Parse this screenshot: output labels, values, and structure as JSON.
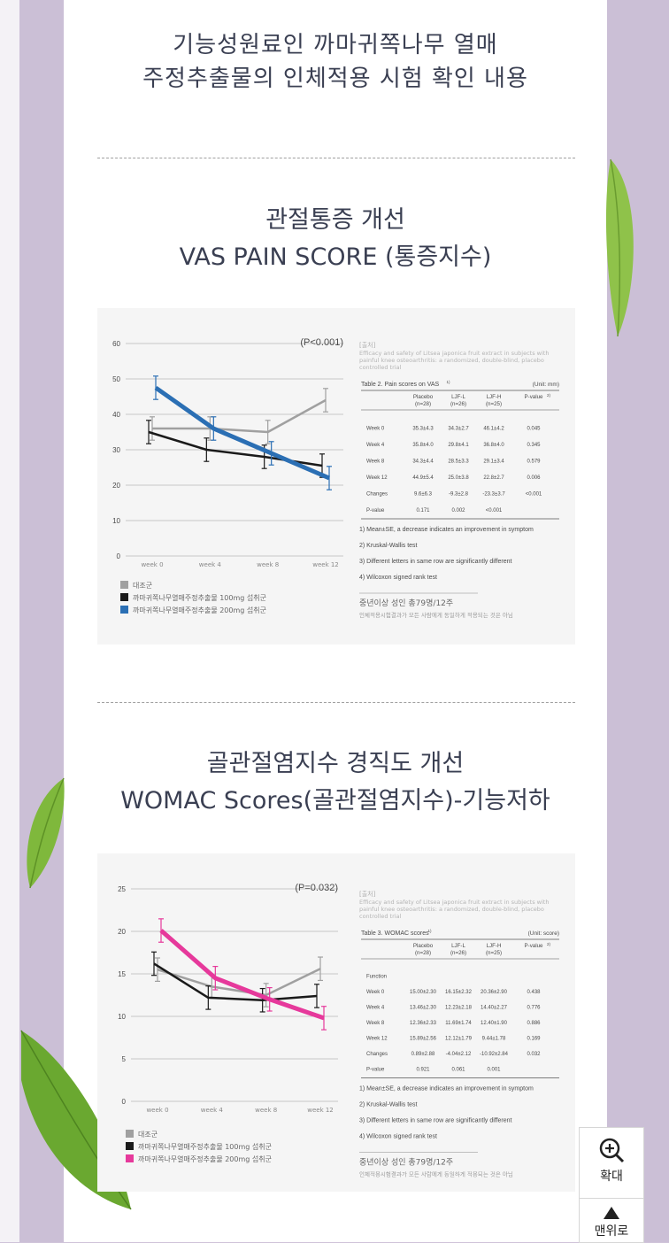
{
  "title": {
    "line1": "기능성원료인 까마귀쪽나무 열매",
    "line2": "주정추출물의 인체적용 시험 확인 내용"
  },
  "section1": {
    "title_line1": "관절통증 개선",
    "title_line2": "VAS PAIN SCORE (통증지수)"
  },
  "section2": {
    "title_line1": "골관절염지수 경직도 개선",
    "title_line2": "WOMAC Scores(골관절염지수)-기능저하"
  },
  "chart_data": [
    {
      "type": "line",
      "annotation": "(P<0.001)",
      "x": [
        "week 0",
        "week 4",
        "week 8",
        "week 12"
      ],
      "ylim": [
        0,
        60
      ],
      "yticks": [
        "0",
        "10",
        "20",
        "30",
        "40",
        "50",
        "60"
      ],
      "series": [
        {
          "name": "대조군",
          "color": "#a0a0a0",
          "values": [
            36,
            36,
            35,
            44
          ]
        },
        {
          "name": "까마귀쪽나무열매주정추출물 100mg 섭취군",
          "color": "#1a1a1a",
          "values": [
            35,
            30,
            28,
            25.5
          ]
        },
        {
          "name": "까마귀쪽나무열매주정추출물 200mg 섭취군",
          "color": "#2b6fb4",
          "values": [
            47.5,
            36,
            29,
            22
          ]
        }
      ]
    },
    {
      "type": "line",
      "annotation": "(P=0.032)",
      "x": [
        "week 0",
        "week 4",
        "week 8",
        "week 12"
      ],
      "ylim": [
        0,
        25
      ],
      "yticks": [
        "0",
        "5",
        "10",
        "15",
        "20",
        "25"
      ],
      "series": [
        {
          "name": "대조군",
          "color": "#a0a0a0",
          "values": [
            15.5,
            13.5,
            12.5,
            15.6
          ]
        },
        {
          "name": "까마귀쪽나무열매주정추출물 100mg 섭취군",
          "color": "#1a1a1a",
          "values": [
            16.2,
            12.2,
            11.9,
            12.4
          ]
        },
        {
          "name": "까마귀쪽나무열매주정추출물 200mg 섭취군",
          "color": "#e6399b",
          "values": [
            20.1,
            14.5,
            12.0,
            9.8
          ]
        }
      ]
    }
  ],
  "table1": {
    "source": "[출처]",
    "source_text": [
      "Efficacy and safety of Litsea japonica fruit extract in subjects with",
      "painful knee osteoarthritis: a randomized, double-blind, placebo",
      "controlled trial"
    ],
    "caption": "Table 2. Pain scores on VAS",
    "caption_sup": "1)",
    "unit": "(Unit: mm)",
    "headers": [
      "",
      "Placebo\n(n=28)",
      "LJF-L\n(n=26)",
      "LJF-H\n(n=25)",
      "P-value"
    ],
    "header_sup": "2)",
    "rows": [
      [
        "Week 0",
        "35.3±4.3",
        "34.3±2.7",
        "46.1±4.2",
        "0.045"
      ],
      [
        "Week 4",
        "35.8±4.0",
        "29.8±4.1",
        "36.8±4.0",
        "0.345"
      ],
      [
        "Week 8",
        "34.3±4.4",
        "28.5±3.3",
        "29.1±3.4",
        "0.579"
      ],
      [
        "Week 12",
        "44.9±5.4",
        "25.0±3.8",
        "22.8±2.7",
        "0.006"
      ],
      [
        "Changes",
        "9.6±6.3",
        "-9.3±2.8",
        "-23.3±3.7",
        "<0.001"
      ],
      [
        "P-value",
        "0.171",
        "0.002",
        "<0.001",
        ""
      ]
    ],
    "notes": [
      "1) Mean±SE, a decrease indicates an improvement in symptom",
      "2) Kruskal-Wallis test",
      "3) Different letters in same row are significantly different",
      "4) Wilcoxon signed rank test"
    ],
    "subjects": "중년이상 성인 총79명/12주",
    "disclaimer": "인체적용시험결과가 모든 사람에게 동일하게 적용되는 것은 아님"
  },
  "table2": {
    "source": "[출처]",
    "source_text": [
      "Efficacy and safety of Litsea japonica fruit extract in subjects with",
      "painful knee osteoarthritis: a randomized, double-blind, placebo",
      "controlled trial"
    ],
    "caption": "Table 3. WOMAC scores",
    "caption_sup": "1)",
    "unit": "(Unit: score)",
    "headers": [
      "",
      "Placebo\n(n=28)",
      "LJF-L\n(n=26)",
      "LJF-H\n(n=25)",
      "P-value"
    ],
    "header_sup": "2)",
    "rows": [
      [
        "Function",
        "",
        "",
        "",
        ""
      ],
      [
        "Week 0",
        "15.00±2.30",
        "16.15±2.32",
        "20.36±2.90",
        "0.438"
      ],
      [
        "Week 4",
        "13.46±2.30",
        "12.23±2.18",
        "14.40±2.27",
        "0.776"
      ],
      [
        "Week 8",
        "12.36±2.33",
        "11.69±1.74",
        "12.40±1.90",
        "0.886"
      ],
      [
        "Week 12",
        "15.89±2.56",
        "12.12±1.79",
        "9.44±1.78",
        "0.169"
      ],
      [
        "Changes",
        "0.89±2.88",
        "-4.04±2.12",
        "-10.92±2.84",
        "0.032"
      ],
      [
        "P-value",
        "0.921",
        "0.061",
        "0.001",
        ""
      ]
    ],
    "notes": [
      "1) Mean±SE, a decrease indicates an improvement in symptom",
      "2) Kruskal-Wallis test",
      "3) Different letters in same row are significantly different",
      "4) Wilcoxon signed rank test"
    ],
    "subjects": "중년이상 성인 총79명/12주",
    "disclaimer": "인체적용시험결과가 모든 사람에게 동일하게 적용되는 것은 아님"
  },
  "buttons": {
    "zoom_label": "확대",
    "top_label": "맨위로"
  },
  "colors": {
    "background": "#cbbfd6",
    "heading": "#3a3f52",
    "accent_blue": "#2b6fb4",
    "accent_pink": "#e6399b"
  }
}
